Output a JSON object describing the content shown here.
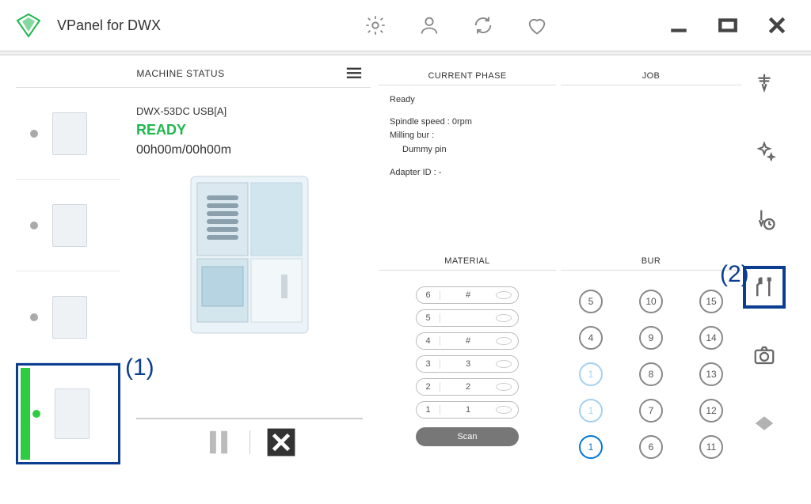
{
  "app": {
    "title": "VPanel for DWX"
  },
  "colors": {
    "accent": "#0b3d91",
    "ready": "#1fb84e",
    "active_dot": "#2ecc40"
  },
  "annotations": {
    "label1": "(1)",
    "label2": "(2)"
  },
  "machine_status": {
    "title": "MACHINE STATUS",
    "selected": {
      "name": "DWX-53DC USB[A]",
      "status": "READY",
      "status_color": "#1fb84e",
      "time": "00h00m/00h00m"
    },
    "thumbnails": [
      {
        "active": false
      },
      {
        "active": false
      },
      {
        "active": false
      },
      {
        "active": true,
        "selected": true
      }
    ],
    "controls": {
      "pause": "pause",
      "cancel": "cancel"
    }
  },
  "current_phase": {
    "title": "CURRENT PHASE",
    "state": "Ready",
    "spindle_label": "Spindle speed :",
    "spindle_value": "0rpm",
    "milling_bur_label": "Milling bur :",
    "milling_bur_value": "Dummy pin",
    "adapter_label": "Adapter ID :",
    "adapter_value": "-"
  },
  "job": {
    "title": "JOB"
  },
  "material": {
    "title": "MATERIAL",
    "rows": [
      {
        "slot": "6",
        "label": "#"
      },
      {
        "slot": "5",
        "label": ""
      },
      {
        "slot": "4",
        "label": "#"
      },
      {
        "slot": "3",
        "label": "3"
      },
      {
        "slot": "2",
        "label": "2"
      },
      {
        "slot": "1",
        "label": "1"
      }
    ],
    "scan_label": "Scan"
  },
  "bur": {
    "title": "BUR",
    "grid": [
      {
        "n": "5",
        "style": "normal"
      },
      {
        "n": "10",
        "style": "normal"
      },
      {
        "n": "15",
        "style": "normal"
      },
      {
        "n": "4",
        "style": "normal"
      },
      {
        "n": "9",
        "style": "normal"
      },
      {
        "n": "14",
        "style": "normal"
      },
      {
        "n": "1",
        "style": "light"
      },
      {
        "n": "8",
        "style": "normal"
      },
      {
        "n": "13",
        "style": "normal"
      },
      {
        "n": "1",
        "style": "light"
      },
      {
        "n": "7",
        "style": "normal"
      },
      {
        "n": "12",
        "style": "normal"
      },
      {
        "n": "1",
        "style": "blue"
      },
      {
        "n": "6",
        "style": "normal"
      },
      {
        "n": "11",
        "style": "normal"
      }
    ]
  },
  "rail": {
    "items": [
      "mill",
      "clean",
      "schedule",
      "tools",
      "camera",
      "disc"
    ],
    "selected_index": 3
  }
}
